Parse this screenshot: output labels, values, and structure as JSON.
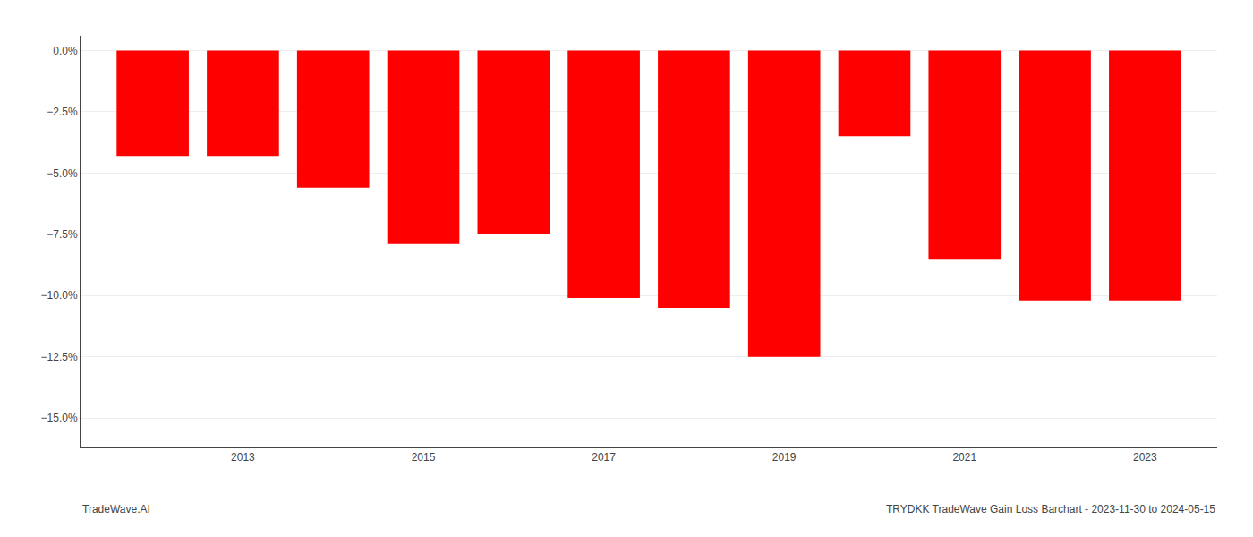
{
  "chart_data": {
    "type": "bar",
    "x": [
      2012,
      2013,
      2014,
      2015,
      2016,
      2017,
      2018,
      2019,
      2020,
      2021,
      2022,
      2023
    ],
    "values": [
      -4.3,
      -4.3,
      -5.6,
      -7.9,
      -7.5,
      -10.1,
      -10.5,
      -12.5,
      -3.5,
      -8.5,
      -10.2,
      -10.2
    ],
    "color": "#ff0000",
    "xlim": [
      2011.2,
      2023.8
    ],
    "xticks": [
      2013,
      2015,
      2017,
      2019,
      2021,
      2023
    ],
    "ylim": [
      -16.2,
      0.6
    ],
    "yticks": [
      {
        "value": 0.0,
        "label": "0.0%"
      },
      {
        "value": -2.5,
        "label": "−2.5%"
      },
      {
        "value": -5.0,
        "label": "−5.0%"
      },
      {
        "value": -7.5,
        "label": "−7.5%"
      },
      {
        "value": -10.0,
        "label": "−10.0%"
      },
      {
        "value": -12.5,
        "label": "−12.5%"
      },
      {
        "value": -15.0,
        "label": "−15.0%"
      }
    ],
    "grid": true,
    "annotations": [
      "TradeWave.AI",
      "TRYDKK TradeWave Gain Loss Barchart - 2023-11-30 to 2024-05-15"
    ]
  }
}
